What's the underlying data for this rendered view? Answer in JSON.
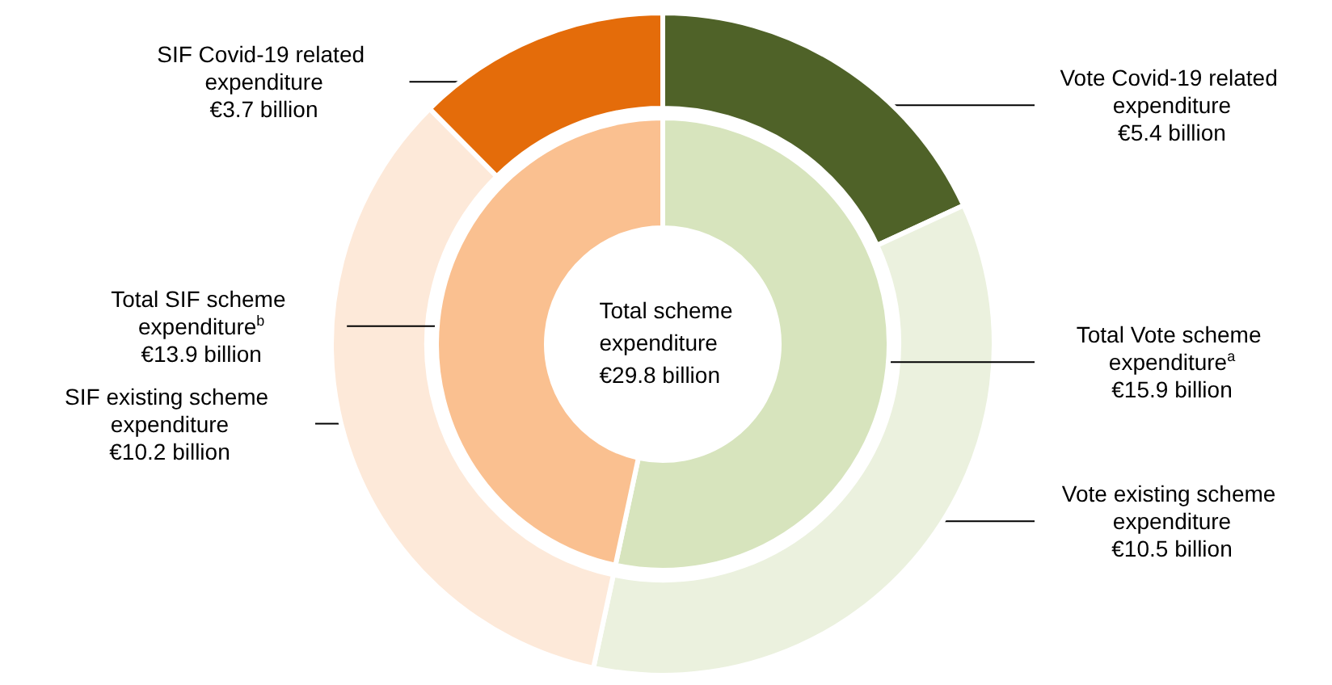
{
  "chart_data": [
    {
      "type": "donut",
      "annotations": [
        "Total scheme expenditure €29.8 billion"
      ],
      "categories": [
        "Total Vote scheme expenditure$^{a}$",
        "Total SIF scheme expenditure$^{b}$"
      ],
      "values": [
        15.9,
        13.9
      ],
      "colors": [
        "#d7e4bd",
        "#fac090"
      ],
      "value_labels": [
        "€15.9 billion",
        "€13.9 billion"
      ]
    },
    {
      "type": "donut",
      "categories": [
        "Vote Covid-19 related expenditure",
        "Vote existing scheme expenditure",
        "SIF existing scheme expenditure",
        "SIF Covid-19 related expenditure"
      ],
      "values": [
        5.4,
        10.5,
        10.2,
        3.7
      ],
      "colors": [
        "#4f6228",
        "#ebf1de",
        "#fde9d9",
        "#e46c0a"
      ],
      "value_labels": [
        "€5.4 billion",
        "€10.5 billion",
        "€10.2 billion",
        "€3.7 billion"
      ]
    }
  ]
}
